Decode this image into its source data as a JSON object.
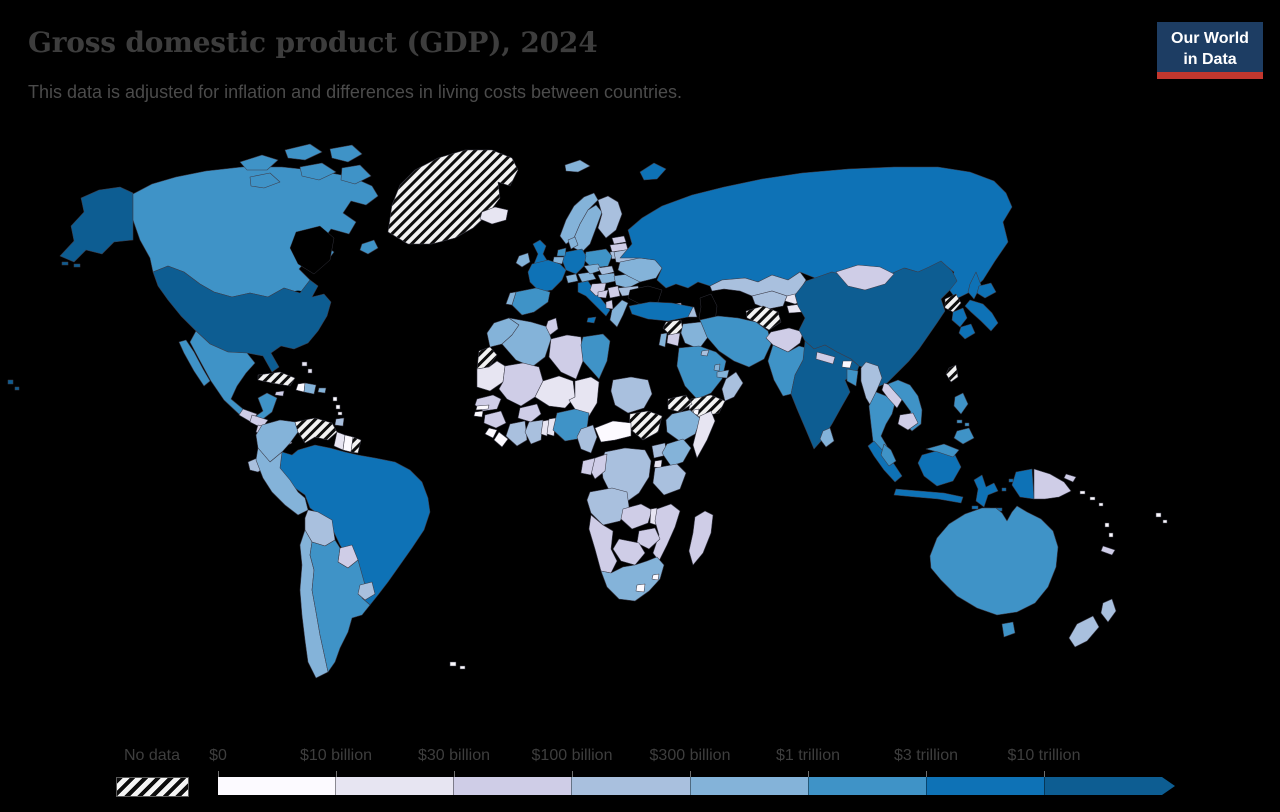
{
  "header": {
    "title": "Gross domestic product (GDP), 2024",
    "subtitle": "This data is adjusted for inflation and differences in living costs between countries."
  },
  "logo": {
    "line1": "Our World",
    "line2": "in Data",
    "background": "#1d3d63",
    "accent_bar": "#c2372e",
    "text_color": "#ffffff"
  },
  "legend": {
    "no_data_label": "No data",
    "tick_labels": [
      "$0",
      "$10 billion",
      "$30 billion",
      "$100 billion",
      "$300 billion",
      "$1 trillion",
      "$3 trillion",
      "$10 trillion"
    ]
  },
  "chart_data": {
    "type": "choropleth-map",
    "title": "Gross domestic product (GDP), 2024",
    "year": 2024,
    "unit": "GDP adjusted for inflation and cost-of-living differences (PPP)",
    "legend_position": "bottom",
    "no_data": {
      "label": "No data",
      "pattern": "black-white-diagonal-hatch"
    },
    "legend_bins": [
      {
        "label": "$0–$10 billion",
        "color": "#fcfaff"
      },
      {
        "label": "$10–$30 billion",
        "color": "#e7e5f2"
      },
      {
        "label": "$30–$100 billion",
        "color": "#cfcde7"
      },
      {
        "label": "$100–$300 billion",
        "color": "#a9c0de"
      },
      {
        "label": "$300 billion–$1 trillion",
        "color": "#84b3d9"
      },
      {
        "label": "$1–$3 trillion",
        "color": "#3f93c7"
      },
      {
        "label": "$3–$10 trillion",
        "color": "#0e72b6"
      },
      {
        "label": "$10+ trillion",
        "color": "#0d5d92"
      }
    ],
    "countries": [
      {
        "id": "united-states",
        "name": "United States",
        "bin": 7
      },
      {
        "id": "china",
        "name": "China",
        "bin": 7
      },
      {
        "id": "india",
        "name": "India",
        "bin": 7
      },
      {
        "id": "brazil",
        "name": "Brazil",
        "bin": 6
      },
      {
        "id": "russia",
        "name": "Russia",
        "bin": 6
      },
      {
        "id": "japan",
        "name": "Japan",
        "bin": 6
      },
      {
        "id": "germany",
        "name": "Germany",
        "bin": 6
      },
      {
        "id": "united-kingdom",
        "name": "United Kingdom",
        "bin": 6
      },
      {
        "id": "france",
        "name": "France",
        "bin": 6
      },
      {
        "id": "italy",
        "name": "Italy",
        "bin": 6
      },
      {
        "id": "turkey",
        "name": "Turkey",
        "bin": 6
      },
      {
        "id": "indonesia",
        "name": "Indonesia",
        "bin": 6
      },
      {
        "id": "south-korea",
        "name": "South Korea",
        "bin": 6
      },
      {
        "id": "canada",
        "name": "Canada",
        "bin": 5
      },
      {
        "id": "mexico",
        "name": "Mexico",
        "bin": 5
      },
      {
        "id": "spain",
        "name": "Spain",
        "bin": 5
      },
      {
        "id": "poland",
        "name": "Poland",
        "bin": 5
      },
      {
        "id": "australia",
        "name": "Australia",
        "bin": 5
      },
      {
        "id": "saudi-arabia",
        "name": "Saudi Arabia",
        "bin": 5
      },
      {
        "id": "iran",
        "name": "Iran",
        "bin": 5
      },
      {
        "id": "pakistan",
        "name": "Pakistan",
        "bin": 5
      },
      {
        "id": "egypt",
        "name": "Egypt",
        "bin": 5
      },
      {
        "id": "nigeria",
        "name": "Nigeria",
        "bin": 5
      },
      {
        "id": "argentina",
        "name": "Argentina",
        "bin": 5
      },
      {
        "id": "vietnam",
        "name": "Vietnam",
        "bin": 5
      },
      {
        "id": "thailand",
        "name": "Thailand",
        "bin": 5
      },
      {
        "id": "philippines",
        "name": "Philippines",
        "bin": 5
      },
      {
        "id": "malaysia",
        "name": "Malaysia",
        "bin": 5
      },
      {
        "id": "bangladesh",
        "name": "Bangladesh",
        "bin": 5
      },
      {
        "id": "netherlands",
        "name": "Netherlands",
        "bin": 5
      },
      {
        "id": "colombia",
        "name": "Colombia",
        "bin": 4
      },
      {
        "id": "chile",
        "name": "Chile",
        "bin": 4
      },
      {
        "id": "peru",
        "name": "Peru",
        "bin": 4
      },
      {
        "id": "norway",
        "name": "Norway",
        "bin": 4
      },
      {
        "id": "svalbard",
        "name": "Svalbard",
        "bin": 4
      },
      {
        "id": "sweden",
        "name": "Sweden",
        "bin": 4
      },
      {
        "id": "denmark",
        "name": "Denmark",
        "bin": 4
      },
      {
        "id": "ireland",
        "name": "Ireland",
        "bin": 4
      },
      {
        "id": "portugal",
        "name": "Portugal",
        "bin": 4
      },
      {
        "id": "greece",
        "name": "Greece",
        "bin": 4
      },
      {
        "id": "czechia",
        "name": "Czechia",
        "bin": 4
      },
      {
        "id": "romania",
        "name": "Romania",
        "bin": 4
      },
      {
        "id": "ukraine",
        "name": "Ukraine",
        "bin": 4
      },
      {
        "id": "iraq",
        "name": "Iraq",
        "bin": 4
      },
      {
        "id": "israel",
        "name": "Israel",
        "bin": 4
      },
      {
        "id": "united-arab-emirates",
        "name": "United Arab Emirates",
        "bin": 4
      },
      {
        "id": "qatar",
        "name": "Qatar",
        "bin": 4
      },
      {
        "id": "algeria",
        "name": "Algeria",
        "bin": 4
      },
      {
        "id": "morocco",
        "name": "Morocco",
        "bin": 4
      },
      {
        "id": "south-africa",
        "name": "South Africa",
        "bin": 4
      },
      {
        "id": "ethiopia",
        "name": "Ethiopia",
        "bin": 4
      },
      {
        "id": "kenya",
        "name": "Kenya",
        "bin": 4
      },
      {
        "id": "switzerland",
        "name": "Switzerland",
        "bin": 4
      },
      {
        "id": "austria",
        "name": "Austria",
        "bin": 4
      },
      {
        "id": "belgium",
        "name": "Belgium",
        "bin": 4
      },
      {
        "id": "hungary",
        "name": "Hungary",
        "bin": 4
      },
      {
        "id": "sri-lanka",
        "name": "Sri Lanka",
        "bin": 4
      },
      {
        "id": "dominican-republic",
        "name": "Dominican Republic",
        "bin": 4
      },
      {
        "id": "puerto-rico",
        "name": "Puerto Rico",
        "bin": 4
      },
      {
        "id": "ecuador",
        "name": "Ecuador",
        "bin": 3
      },
      {
        "id": "bolivia",
        "name": "Bolivia",
        "bin": 3
      },
      {
        "id": "uruguay",
        "name": "Uruguay",
        "bin": 3
      },
      {
        "id": "ghana",
        "name": "Ghana",
        "bin": 3
      },
      {
        "id": "ivory-coast",
        "name": "Cote d'Ivoire",
        "bin": 3
      },
      {
        "id": "cameroon",
        "name": "Cameroon",
        "bin": 3
      },
      {
        "id": "democratic-republic-of-congo",
        "name": "Democratic Republic of Congo",
        "bin": 3
      },
      {
        "id": "angola",
        "name": "Angola",
        "bin": 3
      },
      {
        "id": "uganda",
        "name": "Uganda",
        "bin": 3
      },
      {
        "id": "tanzania",
        "name": "Tanzania",
        "bin": 3
      },
      {
        "id": "kazakhstan",
        "name": "Kazakhstan",
        "bin": 3
      },
      {
        "id": "uzbekistan",
        "name": "Uzbekistan",
        "bin": 3
      },
      {
        "id": "belarus",
        "name": "Belarus",
        "bin": 3
      },
      {
        "id": "bulgaria",
        "name": "Bulgaria",
        "bin": 3
      },
      {
        "id": "slovakia",
        "name": "Slovakia",
        "bin": 3
      },
      {
        "id": "new-zealand",
        "name": "New Zealand",
        "bin": 3
      },
      {
        "id": "myanmar",
        "name": "Myanmar",
        "bin": 3
      },
      {
        "id": "azerbaijan",
        "name": "Azerbaijan",
        "bin": 3
      },
      {
        "id": "sudan",
        "name": "Sudan",
        "bin": 3
      },
      {
        "id": "oman",
        "name": "Oman",
        "bin": 3
      },
      {
        "id": "kuwait",
        "name": "Kuwait",
        "bin": 3
      },
      {
        "id": "trinidad",
        "name": "Trinidad and Tobago",
        "bin": 3
      },
      {
        "id": "finland",
        "name": "Finland",
        "bin": 3
      },
      {
        "id": "lithuania",
        "name": "Lithuania",
        "bin": 3
      },
      {
        "id": "mali",
        "name": "Mali",
        "bin": 2
      },
      {
        "id": "senegal",
        "name": "Senegal",
        "bin": 2
      },
      {
        "id": "guinea",
        "name": "Guinea",
        "bin": 2
      },
      {
        "id": "burkina-faso",
        "name": "Burkina Faso",
        "bin": 2
      },
      {
        "id": "zambia",
        "name": "Zambia",
        "bin": 2
      },
      {
        "id": "zimbabwe",
        "name": "Zimbabwe",
        "bin": 2
      },
      {
        "id": "botswana",
        "name": "Botswana",
        "bin": 2
      },
      {
        "id": "namibia",
        "name": "Namibia",
        "bin": 2
      },
      {
        "id": "mozambique",
        "name": "Mozambique",
        "bin": 2
      },
      {
        "id": "madagascar",
        "name": "Madagascar",
        "bin": 2
      },
      {
        "id": "papua-new-guinea",
        "name": "Papua New Guinea",
        "bin": 2
      },
      {
        "id": "mongolia",
        "name": "Mongolia",
        "bin": 2
      },
      {
        "id": "laos",
        "name": "Laos",
        "bin": 2
      },
      {
        "id": "cambodia",
        "name": "Cambodia",
        "bin": 2
      },
      {
        "id": "nepal",
        "name": "Nepal",
        "bin": 2
      },
      {
        "id": "afghanistan",
        "name": "Afghanistan",
        "bin": 2
      },
      {
        "id": "georgia",
        "name": "Georgia",
        "bin": 2
      },
      {
        "id": "armenia",
        "name": "Armenia",
        "bin": 2
      },
      {
        "id": "latvia",
        "name": "Latvia",
        "bin": 2
      },
      {
        "id": "estonia",
        "name": "Estonia",
        "bin": 2
      },
      {
        "id": "moldova",
        "name": "Moldova",
        "bin": 2
      },
      {
        "id": "bosnia",
        "name": "Bosnia and Herzegovina",
        "bin": 2
      },
      {
        "id": "albania",
        "name": "Albania",
        "bin": 2
      },
      {
        "id": "serbia",
        "name": "Serbia",
        "bin": 2
      },
      {
        "id": "croatia",
        "name": "Croatia",
        "bin": 2
      },
      {
        "id": "honduras",
        "name": "Honduras",
        "bin": 2
      },
      {
        "id": "nicaragua",
        "name": "Nicaragua",
        "bin": 2
      },
      {
        "id": "panama",
        "name": "Panama",
        "bin": 2
      },
      {
        "id": "costa-rica",
        "name": "Costa Rica",
        "bin": 2
      },
      {
        "id": "guatemala",
        "name": "Guatemala",
        "bin": 2
      },
      {
        "id": "paraguay",
        "name": "Paraguay",
        "bin": 2
      },
      {
        "id": "jamaica",
        "name": "Jamaica",
        "bin": 2
      },
      {
        "id": "new-caledonia",
        "name": "New Caledonia",
        "bin": 2
      },
      {
        "id": "congo",
        "name": "Congo",
        "bin": 2
      },
      {
        "id": "gabon",
        "name": "Gabon",
        "bin": 2
      },
      {
        "id": "tunisia",
        "name": "Tunisia",
        "bin": 2
      },
      {
        "id": "libya",
        "name": "Libya",
        "bin": 2
      },
      {
        "id": "jordan",
        "name": "Jordan",
        "bin": 2
      },
      {
        "id": "niger",
        "name": "Niger",
        "bin": 1
      },
      {
        "id": "chad",
        "name": "Chad",
        "bin": 1
      },
      {
        "id": "somalia",
        "name": "Somalia",
        "bin": 1
      },
      {
        "id": "malawi",
        "name": "Malawi",
        "bin": 1
      },
      {
        "id": "rwanda",
        "name": "Rwanda",
        "bin": 1
      },
      {
        "id": "kyrgyzstan",
        "name": "Kyrgyzstan",
        "bin": 1
      },
      {
        "id": "tajikistan",
        "name": "Tajikistan",
        "bin": 1
      },
      {
        "id": "bahamas",
        "name": "Bahamas",
        "bin": 1
      },
      {
        "id": "iceland",
        "name": "Iceland",
        "bin": 1
      },
      {
        "id": "togo",
        "name": "Togo",
        "bin": 1
      },
      {
        "id": "benin",
        "name": "Benin",
        "bin": 1
      },
      {
        "id": "mauritania",
        "name": "Mauritania",
        "bin": 1
      },
      {
        "id": "guyana",
        "name": "Guyana",
        "bin": 1
      },
      {
        "id": "haiti",
        "name": "Haiti",
        "bin": 0
      },
      {
        "id": "sierra-leone",
        "name": "Sierra Leone",
        "bin": 0
      },
      {
        "id": "liberia",
        "name": "Liberia",
        "bin": 0
      },
      {
        "id": "guinea-bissau",
        "name": "Guinea-Bissau",
        "bin": 0
      },
      {
        "id": "gambia",
        "name": "Gambia",
        "bin": 0
      },
      {
        "id": "lesotho",
        "name": "Lesotho",
        "bin": 0
      },
      {
        "id": "eswatini",
        "name": "Eswatini",
        "bin": 0
      },
      {
        "id": "djibouti",
        "name": "Djibouti",
        "bin": 0
      },
      {
        "id": "bhutan",
        "name": "Bhutan",
        "bin": 0
      },
      {
        "id": "fiji",
        "name": "Fiji",
        "bin": 0
      },
      {
        "id": "solomon-islands",
        "name": "Solomon Islands",
        "bin": 0
      },
      {
        "id": "vanuatu",
        "name": "Vanuatu",
        "bin": 0
      },
      {
        "id": "falkland-islands",
        "name": "Falkland Islands",
        "bin": 0
      },
      {
        "id": "central-african-republic",
        "name": "Central African Republic",
        "bin": 0
      },
      {
        "id": "suriname",
        "name": "Suriname",
        "bin": 0
      },
      {
        "id": "lesser-antilles",
        "name": "Lesser Antilles",
        "bin": 0
      },
      {
        "id": "greenland",
        "name": "Greenland",
        "bin": "no-data"
      },
      {
        "id": "cuba",
        "name": "Cuba",
        "bin": "no-data"
      },
      {
        "id": "venezuela",
        "name": "Venezuela",
        "bin": "no-data"
      },
      {
        "id": "french-guiana",
        "name": "French Guiana",
        "bin": "no-data"
      },
      {
        "id": "western-sahara",
        "name": "Western Sahara",
        "bin": "no-data"
      },
      {
        "id": "south-sudan",
        "name": "South Sudan",
        "bin": "no-data"
      },
      {
        "id": "eritrea",
        "name": "Eritrea",
        "bin": "no-data"
      },
      {
        "id": "yemen",
        "name": "Yemen",
        "bin": "no-data"
      },
      {
        "id": "syria",
        "name": "Syria",
        "bin": "no-data"
      },
      {
        "id": "turkmenistan",
        "name": "Turkmenistan",
        "bin": "no-data"
      },
      {
        "id": "north-korea",
        "name": "North Korea",
        "bin": "no-data"
      },
      {
        "id": "taiwan",
        "name": "Taiwan",
        "bin": "no-data"
      }
    ]
  }
}
